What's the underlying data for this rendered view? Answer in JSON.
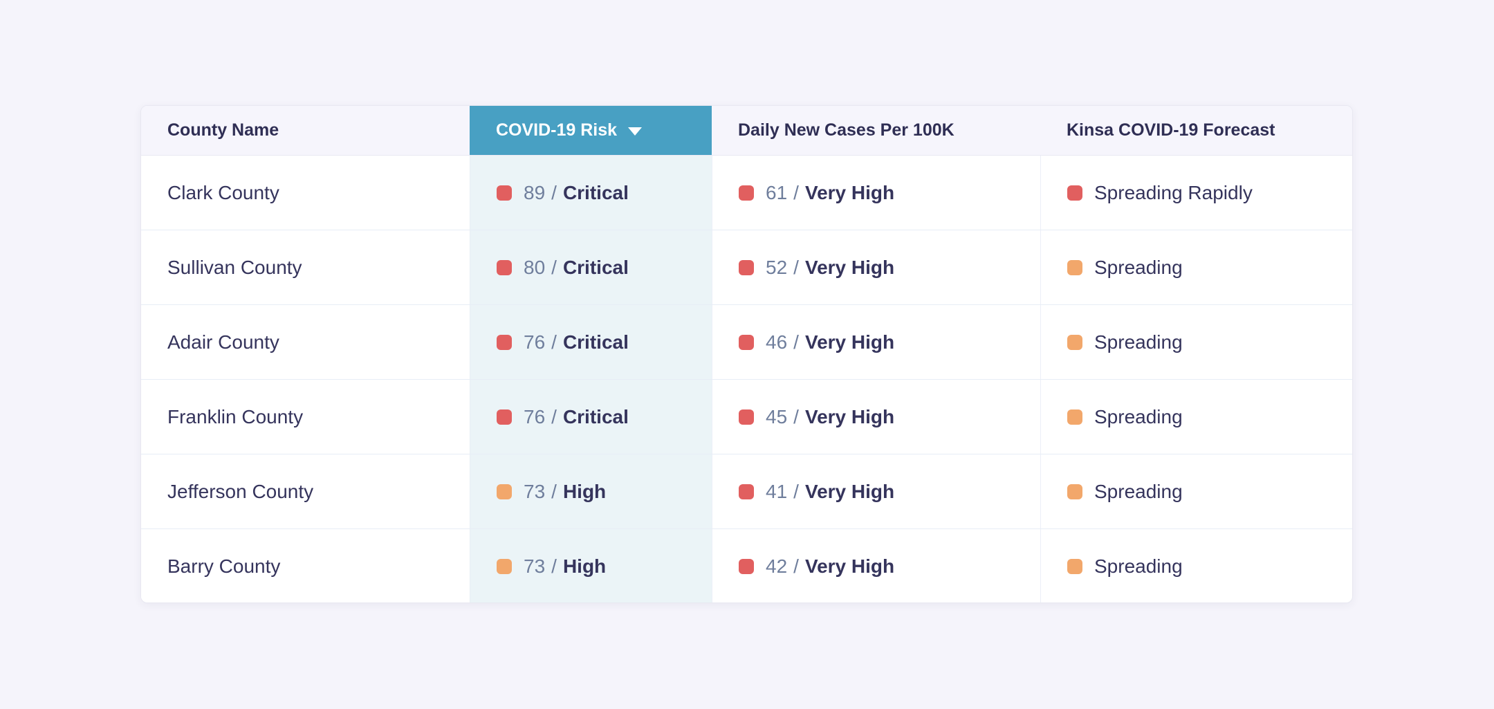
{
  "page": {
    "background_color": "#f5f4fb"
  },
  "colors": {
    "sorted_header_bg": "#48a0c3",
    "risk_column_bg": "#ebf4f7",
    "critical_red": "#e15f5f",
    "high_orange": "#f2a76b",
    "text_navy": "#35345c",
    "text_muted_number": "#6f7e9c"
  },
  "table": {
    "separator": "/",
    "columns": [
      {
        "label": "County Name",
        "sorted": false
      },
      {
        "label": "COVID-19 Risk",
        "sorted": true,
        "sort_icon": "caret-down"
      },
      {
        "label": "Daily New Cases Per 100K",
        "sorted": false
      },
      {
        "label": "Kinsa COVID-19 Forecast",
        "sorted": false
      }
    ],
    "rows": [
      {
        "county": "Clark County",
        "risk": {
          "value": "89",
          "label": "Critical",
          "color": "#e15f5f"
        },
        "cases": {
          "value": "61",
          "label": "Very High",
          "color": "#e15f5f"
        },
        "forecast": {
          "label": "Spreading Rapidly",
          "color": "#e15f5f"
        }
      },
      {
        "county": "Sullivan County",
        "risk": {
          "value": "80",
          "label": "Critical",
          "color": "#e15f5f"
        },
        "cases": {
          "value": "52",
          "label": "Very High",
          "color": "#e15f5f"
        },
        "forecast": {
          "label": "Spreading",
          "color": "#f2a76b"
        }
      },
      {
        "county": "Adair County",
        "risk": {
          "value": "76",
          "label": "Critical",
          "color": "#e15f5f"
        },
        "cases": {
          "value": "46",
          "label": "Very High",
          "color": "#e15f5f"
        },
        "forecast": {
          "label": "Spreading",
          "color": "#f2a76b"
        }
      },
      {
        "county": "Franklin County",
        "risk": {
          "value": "76",
          "label": "Critical",
          "color": "#e15f5f"
        },
        "cases": {
          "value": "45",
          "label": "Very High",
          "color": "#e15f5f"
        },
        "forecast": {
          "label": "Spreading",
          "color": "#f2a76b"
        }
      },
      {
        "county": "Jefferson County",
        "risk": {
          "value": "73",
          "label": "High",
          "color": "#f2a76b"
        },
        "cases": {
          "value": "41",
          "label": "Very High",
          "color": "#e15f5f"
        },
        "forecast": {
          "label": "Spreading",
          "color": "#f2a76b"
        }
      },
      {
        "county": "Barry County",
        "risk": {
          "value": "73",
          "label": "High",
          "color": "#f2a76b"
        },
        "cases": {
          "value": "42",
          "label": "Very High",
          "color": "#e15f5f"
        },
        "forecast": {
          "label": "Spreading",
          "color": "#f2a76b"
        }
      }
    ]
  }
}
